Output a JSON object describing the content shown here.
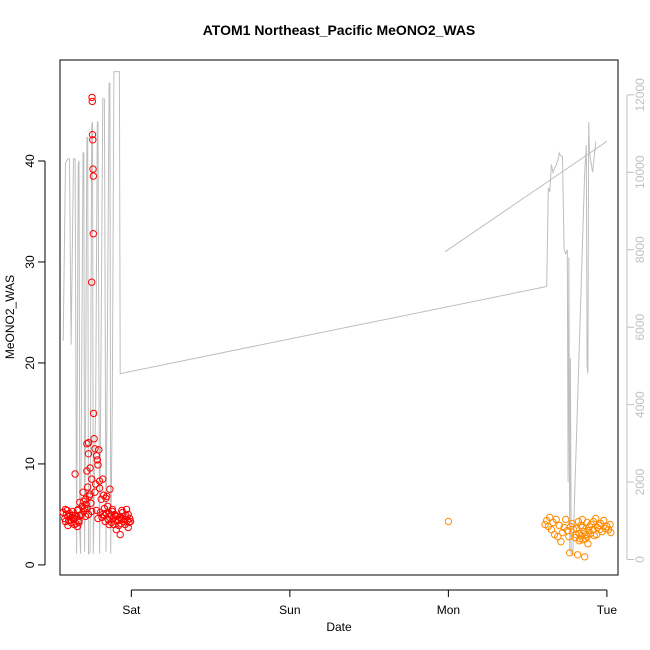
{
  "chart_data": {
    "type": "scatter",
    "title": "ATOM1 Northeast_Pacific MeONO2_WAS",
    "xlabel": "Date",
    "ylabel": "MeONO2_WAS",
    "x_ticks": [
      {
        "label": "Sat",
        "day": 1.0
      },
      {
        "label": "Sun",
        "day": 2.0
      },
      {
        "label": "Mon",
        "day": 3.0
      },
      {
        "label": "Tue",
        "day": 4.0
      }
    ],
    "xlim": [
      0.55,
      4.07
    ],
    "ylim": [
      -1,
      50
    ],
    "y_ticks": [
      0,
      10,
      20,
      30,
      40
    ],
    "y2lim": [
      -400,
      12900
    ],
    "y2_ticks": [
      0,
      2000,
      4000,
      6000,
      8000,
      10000,
      12000
    ],
    "grid": false,
    "colors": {
      "group1": "#ff0000",
      "group2": "#ff8c00",
      "line": "#bebebe",
      "axis": "#000000",
      "right_axis": "#c0c0c0"
    },
    "series": [
      {
        "marker": "circle-open",
        "color": "#ff0000",
        "points": [
          [
            0.57,
            5.2
          ],
          [
            0.58,
            4.6
          ],
          [
            0.585,
            4.3
          ],
          [
            0.59,
            5.0
          ],
          [
            0.595,
            5.4
          ],
          [
            0.6,
            4.8
          ],
          [
            0.605,
            4.4
          ],
          [
            0.61,
            5.1
          ],
          [
            0.615,
            4.9
          ],
          [
            0.62,
            4.2
          ],
          [
            0.625,
            4.7
          ],
          [
            0.63,
            5.3
          ],
          [
            0.635,
            4.5
          ],
          [
            0.64,
            4.0
          ],
          [
            0.645,
            9.0
          ],
          [
            0.65,
            4.1
          ],
          [
            0.655,
            4.8
          ],
          [
            0.66,
            3.8
          ],
          [
            0.665,
            5.5
          ],
          [
            0.67,
            4.4
          ],
          [
            0.675,
            6.2
          ],
          [
            0.68,
            4.9
          ],
          [
            0.685,
            5.0
          ],
          [
            0.69,
            5.8
          ],
          [
            0.695,
            7.2
          ],
          [
            0.7,
            5.3
          ],
          [
            0.705,
            5.6
          ],
          [
            0.71,
            6.5
          ],
          [
            0.715,
            6.0
          ],
          [
            0.72,
            9.3
          ],
          [
            0.72,
            12.0
          ],
          [
            0.725,
            7.7
          ],
          [
            0.73,
            11.0
          ],
          [
            0.73,
            12.1
          ],
          [
            0.735,
            6.8
          ],
          [
            0.74,
            9.6
          ],
          [
            0.74,
            7.0
          ],
          [
            0.745,
            6.1
          ],
          [
            0.75,
            8.5
          ],
          [
            0.75,
            28.0
          ],
          [
            0.752,
            46.3
          ],
          [
            0.754,
            45.9
          ],
          [
            0.755,
            42.6
          ],
          [
            0.757,
            42.1
          ],
          [
            0.758,
            39.2
          ],
          [
            0.76,
            38.5
          ],
          [
            0.76,
            32.8
          ],
          [
            0.762,
            15.0
          ],
          [
            0.765,
            12.5
          ],
          [
            0.77,
            7.2
          ],
          [
            0.77,
            11.5
          ],
          [
            0.775,
            8.0
          ],
          [
            0.78,
            10.8
          ],
          [
            0.785,
            10.4
          ],
          [
            0.79,
            9.9
          ],
          [
            0.795,
            11.4
          ],
          [
            0.8,
            8.3
          ],
          [
            0.805,
            5.2
          ],
          [
            0.81,
            6.5
          ],
          [
            0.815,
            4.7
          ],
          [
            0.82,
            5.0
          ],
          [
            0.825,
            6.9
          ],
          [
            0.83,
            5.6
          ],
          [
            0.835,
            4.3
          ],
          [
            0.84,
            6.6
          ],
          [
            0.845,
            6.8
          ],
          [
            0.85,
            5.8
          ],
          [
            0.855,
            4.5
          ],
          [
            0.86,
            5.1
          ],
          [
            0.865,
            7.5
          ],
          [
            0.87,
            4.9
          ],
          [
            0.875,
            4.2
          ],
          [
            0.88,
            5.3
          ],
          [
            0.885,
            4.6
          ],
          [
            0.89,
            4.0
          ],
          [
            0.895,
            5.0
          ],
          [
            0.9,
            4.4
          ],
          [
            0.905,
            3.5
          ],
          [
            0.91,
            4.8
          ],
          [
            0.915,
            4.5
          ],
          [
            0.92,
            3.9
          ],
          [
            0.925,
            4.7
          ],
          [
            0.93,
            3.0
          ],
          [
            0.935,
            4.1
          ],
          [
            0.94,
            4.6
          ],
          [
            0.945,
            5.2
          ],
          [
            0.95,
            4.3
          ],
          [
            0.955,
            4.8
          ],
          [
            0.96,
            4.5
          ],
          [
            0.965,
            4.9
          ],
          [
            0.97,
            5.5
          ],
          [
            0.975,
            4.4
          ],
          [
            0.98,
            5.0
          ],
          [
            0.985,
            4.2
          ],
          [
            0.99,
            4.6
          ],
          [
            0.995,
            4.3
          ],
          [
            0.585,
            5.5
          ],
          [
            0.6,
            3.9
          ],
          [
            0.64,
            4.6
          ],
          [
            0.66,
            5.4
          ],
          [
            0.7,
            6.3
          ],
          [
            0.72,
            5.6
          ],
          [
            0.73,
            5.0
          ],
          [
            0.78,
            5.4
          ],
          [
            0.8,
            7.6
          ],
          [
            0.82,
            8.5
          ],
          [
            0.84,
            5.1
          ],
          [
            0.86,
            4.0
          ],
          [
            0.88,
            5.5
          ],
          [
            0.9,
            4.9
          ],
          [
            0.92,
            4.4
          ],
          [
            0.94,
            5.4
          ],
          [
            0.96,
            4.0
          ],
          [
            0.98,
            3.7
          ],
          [
            0.63,
            4.9
          ],
          [
            0.67,
            4.2
          ],
          [
            0.71,
            4.8
          ],
          [
            0.75,
            5.3
          ],
          [
            0.79,
            4.6
          ],
          [
            0.83,
            4.9
          ]
        ]
      },
      {
        "marker": "circle-open",
        "color": "#ff8c00",
        "points": [
          [
            3.0,
            4.3
          ],
          [
            3.61,
            4.0
          ],
          [
            3.62,
            4.4
          ],
          [
            3.63,
            3.8
          ],
          [
            3.64,
            4.7
          ],
          [
            3.65,
            3.5
          ],
          [
            3.66,
            4.2
          ],
          [
            3.67,
            3.0
          ],
          [
            3.68,
            4.5
          ],
          [
            3.69,
            2.8
          ],
          [
            3.7,
            3.9
          ],
          [
            3.71,
            2.3
          ],
          [
            3.72,
            3.2
          ],
          [
            3.73,
            3.7
          ],
          [
            3.74,
            4.5
          ],
          [
            3.75,
            3.4
          ],
          [
            3.76,
            2.8
          ],
          [
            3.765,
            1.2
          ],
          [
            3.77,
            3.8
          ],
          [
            3.78,
            4.1
          ],
          [
            3.79,
            3.5
          ],
          [
            3.8,
            2.7
          ],
          [
            3.81,
            3.6
          ],
          [
            3.815,
            1.0
          ],
          [
            3.82,
            4.3
          ],
          [
            3.825,
            3.1
          ],
          [
            3.83,
            2.6
          ],
          [
            3.835,
            3.9
          ],
          [
            3.84,
            2.9
          ],
          [
            3.845,
            4.5
          ],
          [
            3.85,
            2.5
          ],
          [
            3.855,
            3.3
          ],
          [
            3.86,
            0.8
          ],
          [
            3.865,
            2.6
          ],
          [
            3.87,
            3.0
          ],
          [
            3.875,
            4.2
          ],
          [
            3.88,
            2.1
          ],
          [
            3.885,
            3.4
          ],
          [
            3.89,
            3.8
          ],
          [
            3.9,
            4.0
          ],
          [
            3.91,
            3.5
          ],
          [
            3.92,
            2.9
          ],
          [
            3.93,
            4.6
          ],
          [
            3.94,
            3.7
          ],
          [
            3.95,
            3.9
          ],
          [
            3.96,
            4.1
          ],
          [
            3.97,
            3.3
          ],
          [
            3.98,
            4.4
          ],
          [
            3.99,
            3.6
          ],
          [
            4.0,
            3.8
          ],
          [
            4.01,
            3.5
          ],
          [
            4.02,
            4.0
          ],
          [
            4.025,
            3.2
          ],
          [
            3.805,
            3.0
          ],
          [
            3.825,
            2.4
          ],
          [
            3.845,
            3.7
          ],
          [
            3.875,
            2.8
          ],
          [
            3.895,
            3.1
          ],
          [
            3.915,
            4.3
          ],
          [
            3.935,
            3.0
          ],
          [
            3.955,
            3.5
          ]
        ]
      }
    ],
    "line_series": {
      "color": "#bebebe",
      "axis": "right",
      "points": [
        [
          0.57,
          5650
        ],
        [
          0.585,
          10250
        ],
        [
          0.6,
          10350
        ],
        [
          0.61,
          10350
        ],
        [
          0.62,
          5550
        ],
        [
          0.635,
          10350
        ],
        [
          0.645,
          10350
        ],
        [
          0.655,
          150
        ],
        [
          0.665,
          10200
        ],
        [
          0.67,
          10300
        ],
        [
          0.675,
          700
        ],
        [
          0.68,
          150
        ],
        [
          0.695,
          10500
        ],
        [
          0.7,
          10500
        ],
        [
          0.705,
          200
        ],
        [
          0.71,
          3000
        ],
        [
          0.72,
          10900
        ],
        [
          0.725,
          10900
        ],
        [
          0.73,
          150
        ],
        [
          0.74,
          200
        ],
        [
          0.75,
          11200
        ],
        [
          0.755,
          11300
        ],
        [
          0.76,
          150
        ],
        [
          0.775,
          4000
        ],
        [
          0.785,
          11300
        ],
        [
          0.79,
          11300
        ],
        [
          0.8,
          150
        ],
        [
          0.82,
          11900
        ],
        [
          0.83,
          11900
        ],
        [
          0.84,
          200
        ],
        [
          0.86,
          12300
        ],
        [
          0.865,
          12300
        ],
        [
          0.87,
          150
        ],
        [
          0.88,
          4000
        ],
        [
          0.89,
          12600
        ],
        [
          0.925,
          12600
        ],
        [
          0.93,
          4800
        ],
        [
          3.62,
          7050
        ],
        [
          3.63,
          9600
        ],
        [
          3.64,
          9500
        ],
        [
          3.65,
          10200
        ],
        [
          3.66,
          10000
        ],
        [
          3.67,
          10100
        ],
        [
          3.69,
          10300
        ],
        [
          3.7,
          10500
        ],
        [
          3.705,
          10450
        ],
        [
          3.72,
          10400
        ],
        [
          3.73,
          8000
        ],
        [
          3.74,
          7900
        ],
        [
          3.75,
          8000
        ],
        [
          3.755,
          2000
        ],
        [
          3.76,
          7800
        ],
        [
          3.765,
          200
        ],
        [
          3.77,
          5200
        ],
        [
          3.775,
          150
        ],
        [
          3.78,
          150
        ],
        [
          3.785,
          100
        ],
        [
          3.86,
          10000
        ],
        [
          3.87,
          10700
        ],
        [
          3.875,
          5000
        ],
        [
          3.88,
          4800
        ],
        [
          3.885,
          11300
        ],
        [
          3.89,
          10500
        ],
        [
          3.91,
          10000
        ],
        [
          3.93,
          10800
        ]
      ],
      "extra_segment": [
        [
          2.98,
          7950
        ],
        [
          4.0,
          10800
        ]
      ]
    }
  }
}
